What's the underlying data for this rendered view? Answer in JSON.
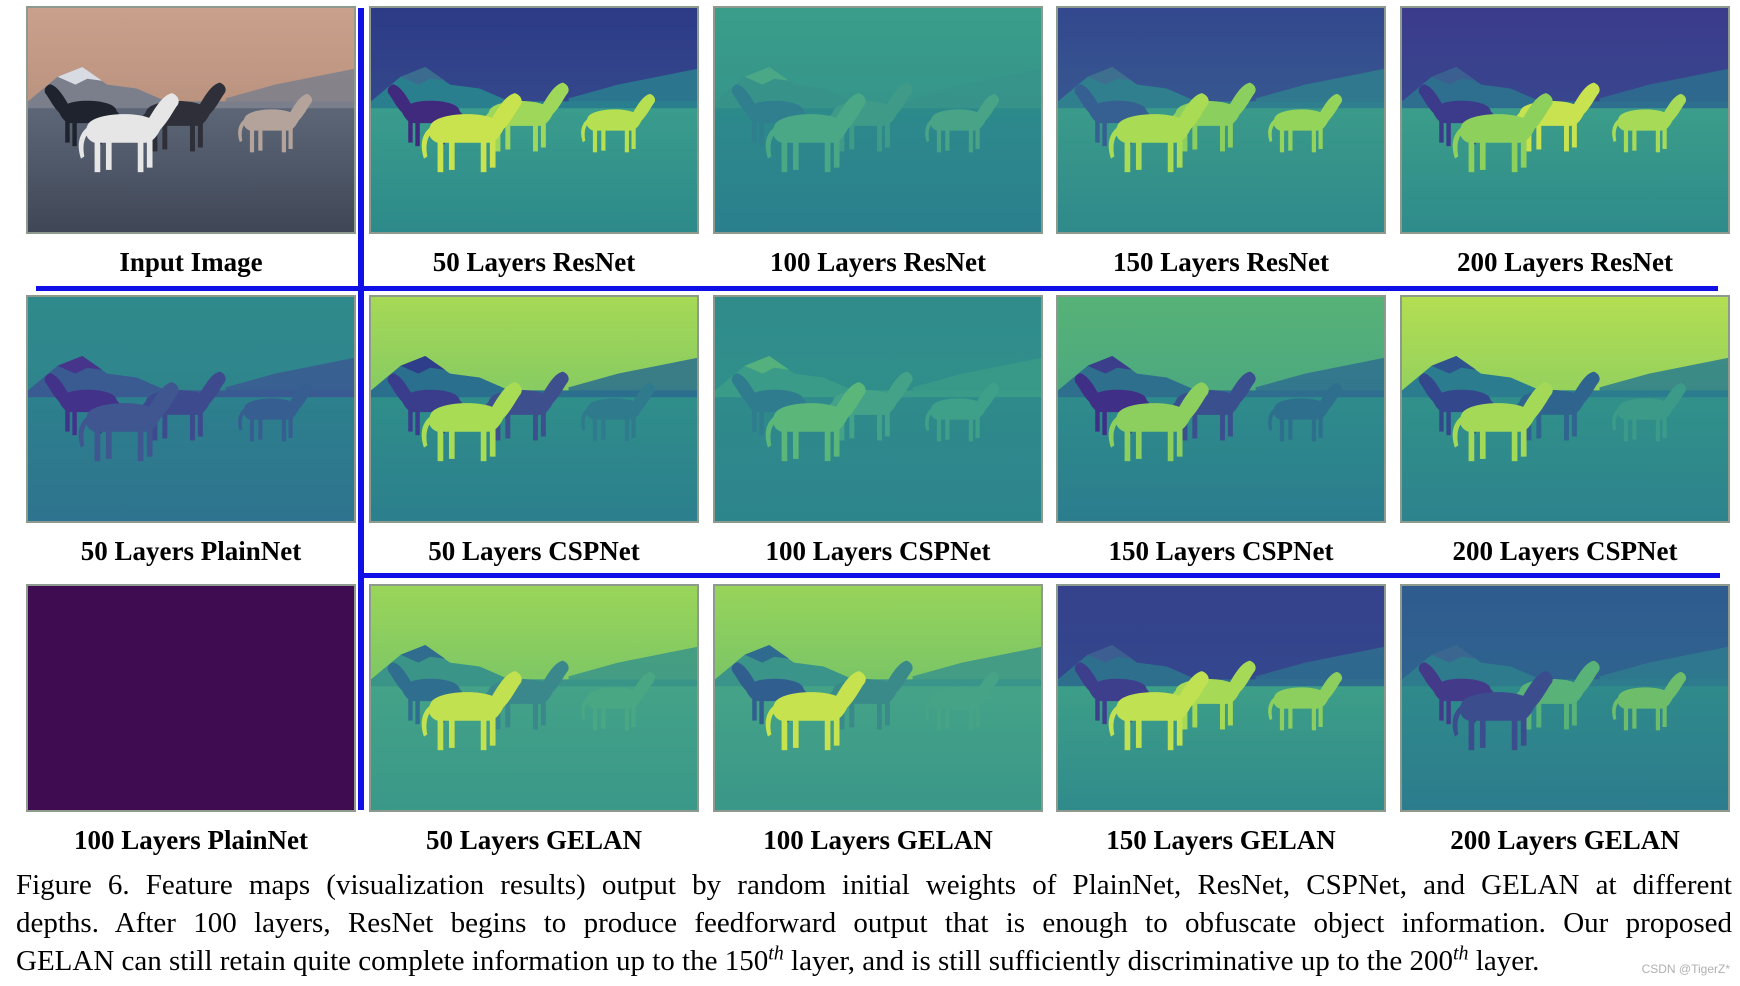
{
  "figure": {
    "grid": [
      [
        {
          "label": "Input Image",
          "style": "photo"
        },
        {
          "label": "50 Layers ResNet",
          "style": "resnet50"
        },
        {
          "label": "100 Layers ResNet",
          "style": "resnet100"
        },
        {
          "label": "150 Layers ResNet",
          "style": "resnet150"
        },
        {
          "label": "200 Layers ResNet",
          "style": "resnet200"
        }
      ],
      [
        {
          "label": "50 Layers PlainNet",
          "style": "plain50"
        },
        {
          "label": "50 Layers CSPNet",
          "style": "csp50"
        },
        {
          "label": "100 Layers CSPNet",
          "style": "csp100"
        },
        {
          "label": "150 Layers CSPNet",
          "style": "csp150"
        },
        {
          "label": "200 Layers CSPNet",
          "style": "csp200"
        }
      ],
      [
        {
          "label": "100 Layers PlainNet",
          "style": "plain100"
        },
        {
          "label": "50 Layers GELAN",
          "style": "gelan50"
        },
        {
          "label": "100 Layers GELAN",
          "style": "gelan100"
        },
        {
          "label": "150 Layers GELAN",
          "style": "gelan150"
        },
        {
          "label": "200 Layers GELAN",
          "style": "gelan200"
        }
      ]
    ],
    "divider_color": "#1010e6"
  },
  "caption": {
    "line1": "Figure 6.  Feature maps (visualization results) output by random initial weights of PlainNet, ResNet, CSPNet, and GELAN at different",
    "line2": "depths.  After 100 layers, ResNet begins to produce feedforward output that is enough to obfuscate object information.  Our proposed",
    "line3_a": "GELAN can still retain quite complete information up to the 150",
    "line3_sup1": "th",
    "line3_b": " layer, and is still sufficiently discriminative up to the 200",
    "line3_sup2": "th",
    "line3_c": " layer."
  },
  "watermark": "CSDN @TigerZ*"
}
